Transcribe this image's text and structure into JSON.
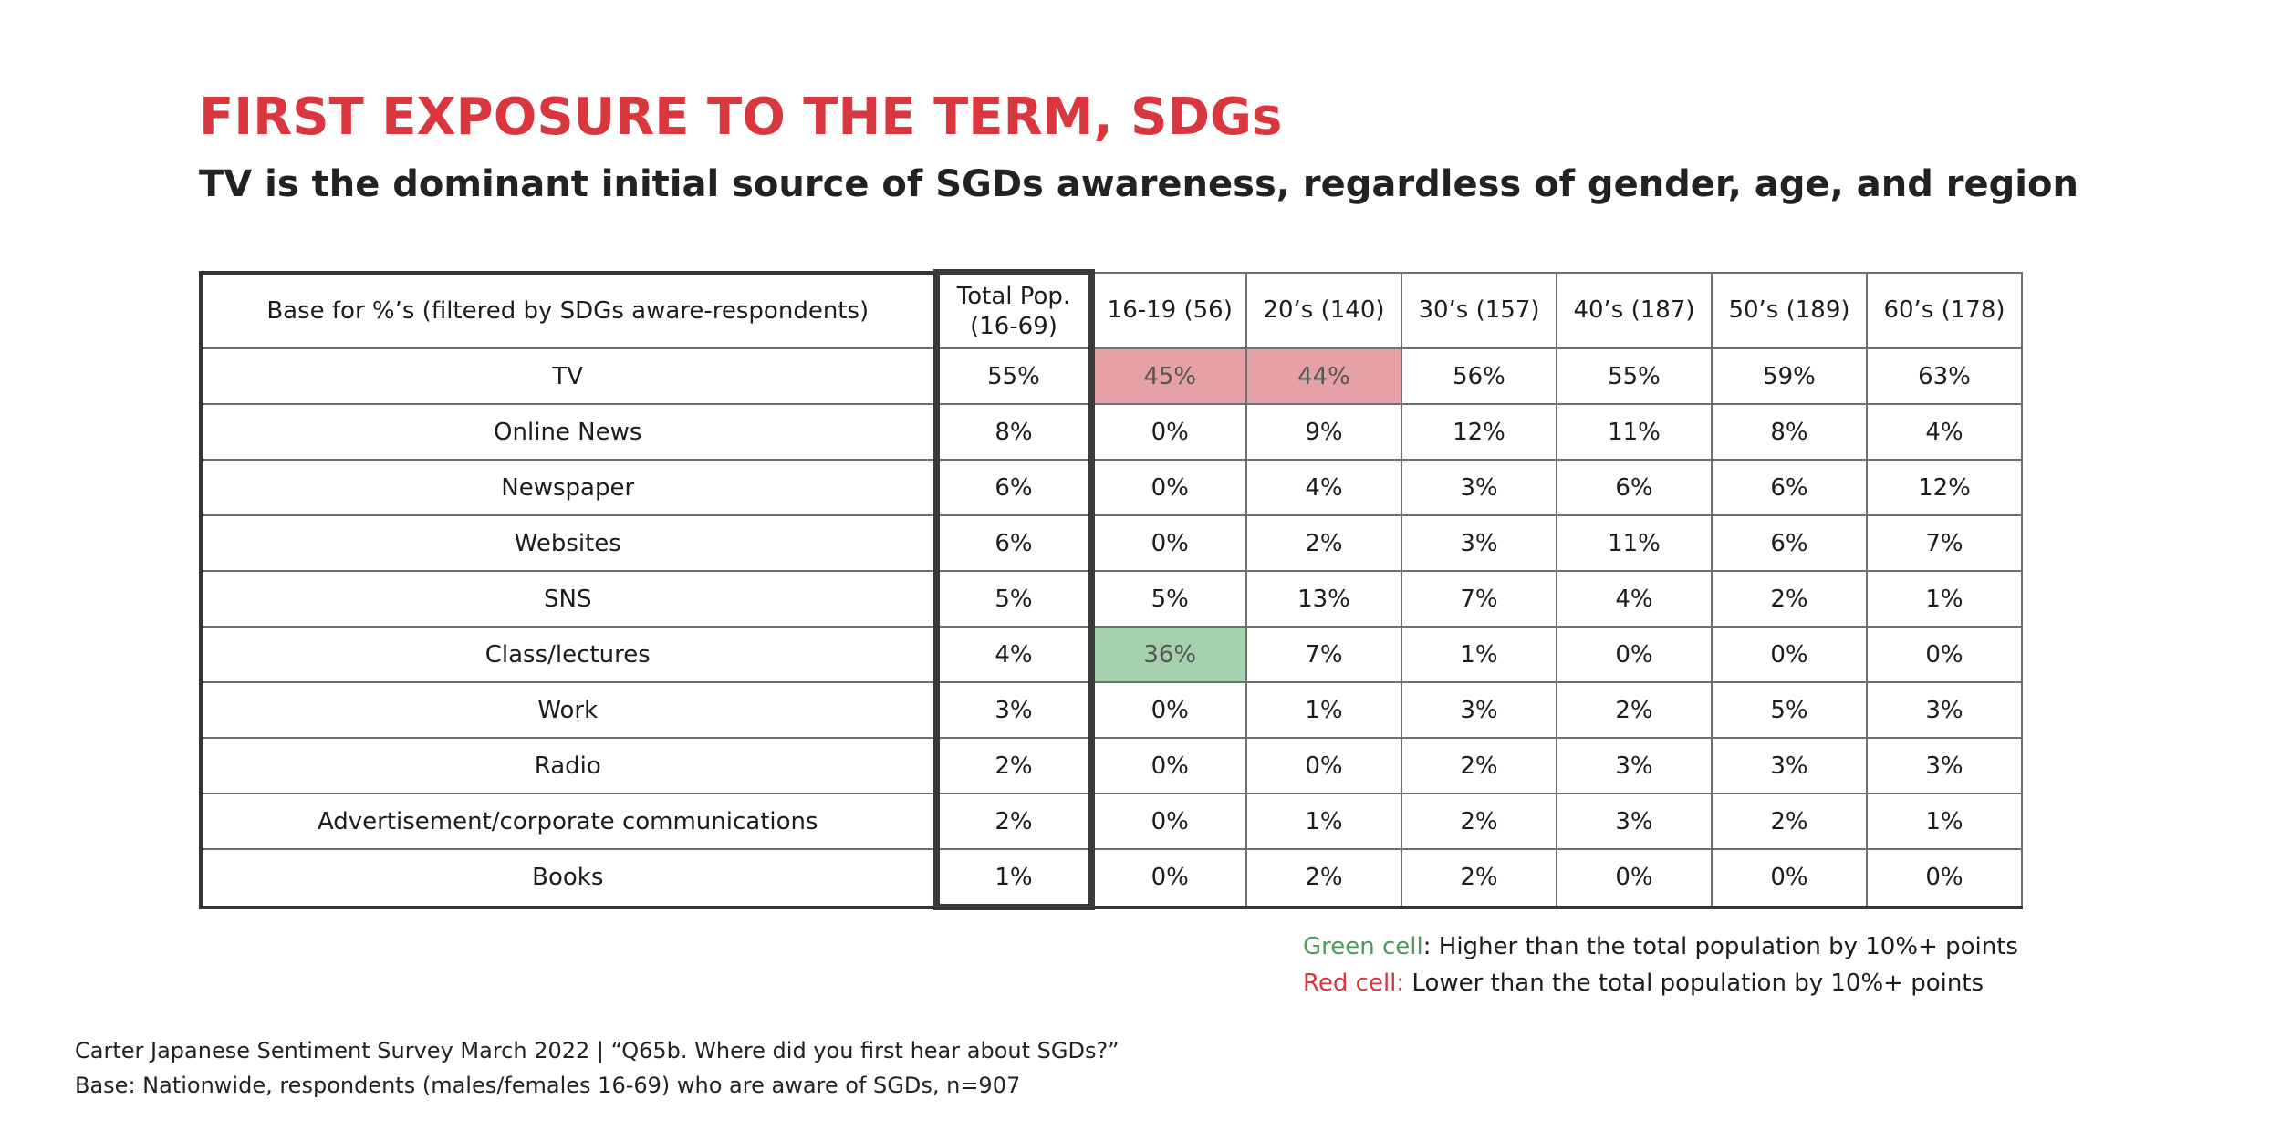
{
  "title": "FIRST EXPOSURE TO THE TERM, SDGs",
  "subtitle": "TV is the dominant initial source of SGDs awareness, regardless of gender, age, and region",
  "colors": {
    "title": "#d9363e",
    "red_cell": "#e5a1a6",
    "green_cell": "#a6d1ae",
    "green_text": "#4c9a5c",
    "red_text": "#d9363e"
  },
  "chart_data": {
    "type": "table",
    "columns": [
      "Base for %’s (filtered by SDGs aware-respondents)",
      "Total Pop.\n(16-69)",
      "16-19 (56)",
      "20’s (140)",
      "30’s (157)",
      "40’s (187)",
      "50’s (189)",
      "60’s (178)"
    ],
    "rows": [
      {
        "label": "TV",
        "values": [
          "55%",
          "45%",
          "44%",
          "56%",
          "55%",
          "59%",
          "63%"
        ],
        "highlight": [
          "",
          "red",
          "red",
          "",
          "",
          "",
          ""
        ]
      },
      {
        "label": "Online News",
        "values": [
          "8%",
          "0%",
          "9%",
          "12%",
          "11%",
          "8%",
          "4%"
        ],
        "highlight": [
          "",
          "",
          "",
          "",
          "",
          "",
          ""
        ]
      },
      {
        "label": "Newspaper",
        "values": [
          "6%",
          "0%",
          "4%",
          "3%",
          "6%",
          "6%",
          "12%"
        ],
        "highlight": [
          "",
          "",
          "",
          "",
          "",
          "",
          ""
        ]
      },
      {
        "label": "Websites",
        "values": [
          "6%",
          "0%",
          "2%",
          "3%",
          "11%",
          "6%",
          "7%"
        ],
        "highlight": [
          "",
          "",
          "",
          "",
          "",
          "",
          ""
        ]
      },
      {
        "label": "SNS",
        "values": [
          "5%",
          "5%",
          "13%",
          "7%",
          "4%",
          "2%",
          "1%"
        ],
        "highlight": [
          "",
          "",
          "",
          "",
          "",
          "",
          ""
        ]
      },
      {
        "label": "Class/lectures",
        "values": [
          "4%",
          "36%",
          "7%",
          "1%",
          "0%",
          "0%",
          "0%"
        ],
        "highlight": [
          "",
          "green",
          "",
          "",
          "",
          "",
          ""
        ]
      },
      {
        "label": "Work",
        "values": [
          "3%",
          "0%",
          "1%",
          "3%",
          "2%",
          "5%",
          "3%"
        ],
        "highlight": [
          "",
          "",
          "",
          "",
          "",
          "",
          ""
        ]
      },
      {
        "label": "Radio",
        "values": [
          "2%",
          "0%",
          "0%",
          "2%",
          "3%",
          "3%",
          "3%"
        ],
        "highlight": [
          "",
          "",
          "",
          "",
          "",
          "",
          ""
        ]
      },
      {
        "label": "Advertisement/corporate communications",
        "values": [
          "2%",
          "0%",
          "1%",
          "2%",
          "3%",
          "2%",
          "1%"
        ],
        "highlight": [
          "",
          "",
          "",
          "",
          "",
          "",
          ""
        ]
      },
      {
        "label": "Books",
        "values": [
          "1%",
          "0%",
          "2%",
          "2%",
          "0%",
          "0%",
          "0%"
        ],
        "highlight": [
          "",
          "",
          "",
          "",
          "",
          "",
          ""
        ]
      }
    ]
  },
  "legend": {
    "green_label": "Green cell",
    "green_text": ": Higher than the total population by 10%+ points",
    "red_label": "Red cell:",
    "red_text": " Lower than the total population by 10%+ points"
  },
  "footer": {
    "source": "Carter Japanese Sentiment Survey March 2022 | “Q65b. Where did you first hear about SGDs?”",
    "base": "Base: Nationwide, respondents (males/females 16-69) who are aware of SGDs, n=907"
  }
}
